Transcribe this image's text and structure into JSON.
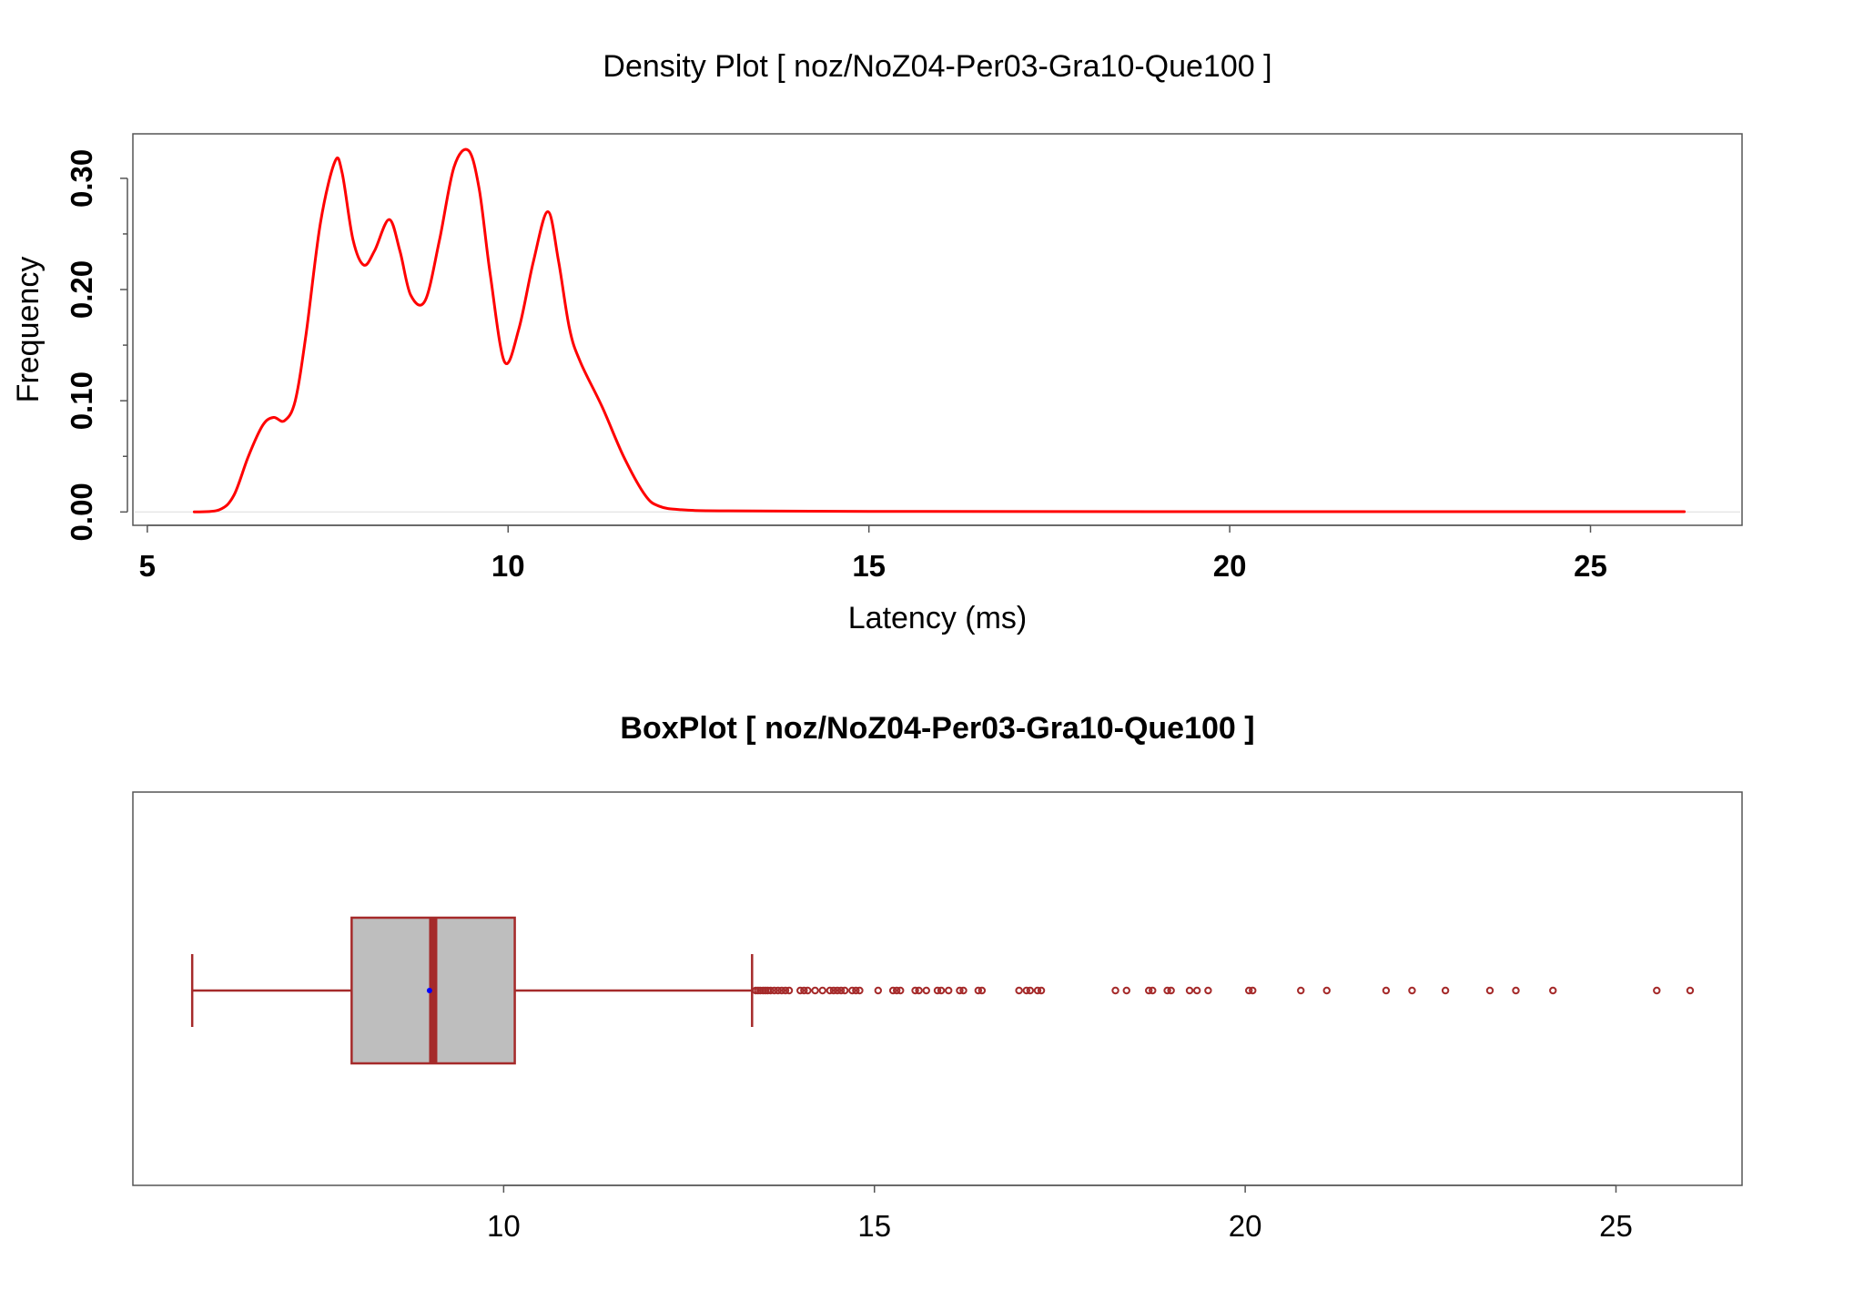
{
  "chart_data": [
    {
      "type": "line",
      "title": "Density Plot [ noz/NoZ04-Per03-Gra10-Que100 ]",
      "xlabel": "Latency (ms)",
      "ylabel": "Frequency",
      "xlim": [
        4.8,
        27.1
      ],
      "ylim": [
        -0.012,
        0.34
      ],
      "xticks": [
        5,
        10,
        15,
        20,
        25
      ],
      "xtick_labels": [
        "5",
        "10",
        "15",
        "20",
        "25"
      ],
      "yticks": [
        0.0,
        0.1,
        0.2,
        0.3
      ],
      "ytick_labels": [
        "0.00",
        "0.10",
        "0.20",
        "0.30"
      ],
      "y_minor_ticks": [
        0.05,
        0.15,
        0.25
      ],
      "grid": false,
      "line_color": "#ff0000",
      "series": [
        {
          "x": [
            5.65,
            6.0,
            6.2,
            6.4,
            6.6,
            6.75,
            6.9,
            7.05,
            7.2,
            7.4,
            7.6,
            7.7,
            7.85,
            8.0,
            8.15,
            8.35,
            8.5,
            8.65,
            8.85,
            9.05,
            9.25,
            9.45,
            9.6,
            9.75,
            9.95,
            10.15,
            10.35,
            10.55,
            10.7,
            10.85,
            11.0,
            11.3,
            11.6,
            11.9,
            12.1,
            12.4,
            13.0,
            15.0,
            20.0,
            26.3
          ],
          "y": [
            0.0,
            0.002,
            0.015,
            0.05,
            0.078,
            0.085,
            0.082,
            0.1,
            0.16,
            0.26,
            0.315,
            0.305,
            0.245,
            0.222,
            0.235,
            0.263,
            0.235,
            0.195,
            0.19,
            0.245,
            0.31,
            0.325,
            0.29,
            0.215,
            0.135,
            0.165,
            0.225,
            0.27,
            0.225,
            0.165,
            0.135,
            0.095,
            0.05,
            0.015,
            0.005,
            0.002,
            0.001,
            0.0005,
            0.0003,
            0.0003
          ]
        }
      ]
    },
    {
      "type": "boxplot",
      "title": "BoxPlot [ noz/NoZ04-Per03-Gra10-Que100 ]",
      "xlim": [
        5.0,
        26.7
      ],
      "xticks": [
        10,
        15,
        20,
        25
      ],
      "xtick_labels": [
        "10",
        "15",
        "20",
        "25"
      ],
      "grid": false,
      "box_fill": "#bebebe",
      "box_color": "#a52a2a",
      "mean_color": "#0000ff",
      "whisker_low": 5.8,
      "q1": 7.95,
      "median": 9.05,
      "q3": 10.15,
      "whisker_high": 13.35,
      "mean": 9.0,
      "outliers": [
        13.4,
        13.43,
        13.46,
        13.5,
        13.53,
        13.56,
        13.6,
        13.65,
        13.7,
        13.75,
        13.8,
        13.85,
        14.0,
        14.05,
        14.1,
        14.2,
        14.3,
        14.4,
        14.45,
        14.5,
        14.55,
        14.6,
        14.7,
        14.75,
        14.8,
        15.05,
        15.25,
        15.3,
        15.35,
        15.55,
        15.6,
        15.7,
        15.85,
        15.9,
        16.0,
        16.15,
        16.2,
        16.4,
        16.45,
        16.95,
        17.05,
        17.1,
        17.2,
        17.25,
        18.25,
        18.4,
        18.7,
        18.75,
        18.95,
        19.0,
        19.25,
        19.35,
        19.5,
        20.05,
        20.1,
        20.75,
        21.1,
        21.9,
        22.25,
        22.7,
        23.3,
        23.65,
        24.15,
        25.55,
        26.0
      ]
    }
  ]
}
